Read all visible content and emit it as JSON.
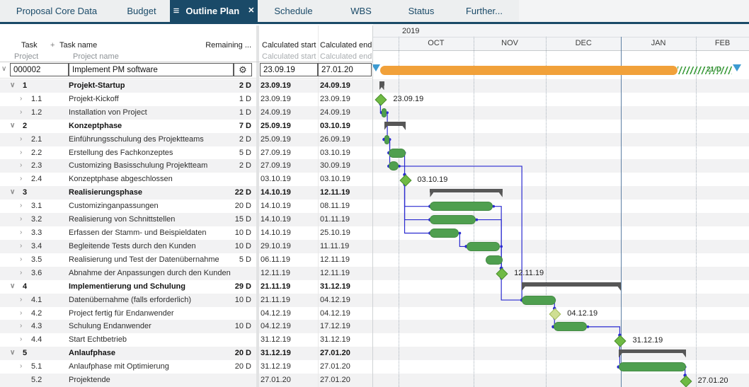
{
  "tabs": [
    {
      "label": "Proposal Core Data",
      "active": false
    },
    {
      "label": "Budget",
      "active": false
    },
    {
      "label": "Outline Plan",
      "active": true
    },
    {
      "label": "Schedule",
      "active": false
    },
    {
      "label": "WBS",
      "active": false
    },
    {
      "label": "Status",
      "active": false
    },
    {
      "label": "Further...",
      "active": false
    }
  ],
  "icons": {
    "menu": "≡",
    "close": "✕",
    "gear": "⚙",
    "chevron_down": "∨",
    "chevron_right": "›",
    "plus": "+"
  },
  "table": {
    "header": {
      "task": "Task",
      "add_column": "+",
      "task_name": "Task name",
      "remaining": "Remaining ...",
      "calc_start": "Calculated start",
      "calc_end": "Calculated end"
    },
    "subheader": {
      "project": "Project",
      "project_name": "Project name",
      "calc_start": "Calculated start",
      "calc_end": "Calculated end"
    },
    "project_row": {
      "id": "000002",
      "name": "Implement PM software",
      "start": "23.09.19",
      "end": "27.01.20"
    }
  },
  "timeline": {
    "year": "2019",
    "months": [
      "OCT",
      "NOV",
      "DEC",
      "JAN",
      "FEB"
    ],
    "buffer_label": "21 D"
  },
  "tasks": [
    {
      "id": "1",
      "name": "Projekt-Startup",
      "remaining": "2 D",
      "start": "23.09.19",
      "end": "24.09.19",
      "level": 1,
      "shape": "summary",
      "chevron": "down"
    },
    {
      "id": "1.1",
      "name": "Projekt-Kickoff",
      "remaining": "1 D",
      "start": "23.09.19",
      "end": "23.09.19",
      "level": 2,
      "shape": "milestone",
      "chevron": "right",
      "label": "23.09.19"
    },
    {
      "id": "1.2",
      "name": "Installation von Project",
      "remaining": "1 D",
      "start": "24.09.19",
      "end": "24.09.19",
      "level": 2,
      "shape": "bar",
      "chevron": "right"
    },
    {
      "id": "2",
      "name": "Konzeptphase",
      "remaining": "7 D",
      "start": "25.09.19",
      "end": "03.10.19",
      "level": 1,
      "shape": "summary",
      "chevron": "down"
    },
    {
      "id": "2.1",
      "name": "Einführungsschulung des Projektteams",
      "remaining": "2 D",
      "start": "25.09.19",
      "end": "26.09.19",
      "level": 2,
      "shape": "bar",
      "chevron": "right"
    },
    {
      "id": "2.2",
      "name": "Erstellung des Fachkonzeptes",
      "remaining": "5 D",
      "start": "27.09.19",
      "end": "03.10.19",
      "level": 2,
      "shape": "bar",
      "chevron": "right"
    },
    {
      "id": "2.3",
      "name": "Customizing Basisschulung Projektteam",
      "remaining": "2 D",
      "start": "27.09.19",
      "end": "30.09.19",
      "level": 2,
      "shape": "bar",
      "chevron": "right"
    },
    {
      "id": "2.4",
      "name": "Konzeptphase abgeschlossen",
      "remaining": "",
      "start": "03.10.19",
      "end": "03.10.19",
      "level": 2,
      "shape": "milestone",
      "chevron": "right",
      "label": "03.10.19"
    },
    {
      "id": "3",
      "name": "Realisierungsphase",
      "remaining": "22 D",
      "start": "14.10.19",
      "end": "12.11.19",
      "level": 1,
      "shape": "summary",
      "chevron": "down"
    },
    {
      "id": "3.1",
      "name": "Customizinganpassungen",
      "remaining": "20 D",
      "start": "14.10.19",
      "end": "08.11.19",
      "level": 2,
      "shape": "bar",
      "chevron": "right"
    },
    {
      "id": "3.2",
      "name": "Realisierung von Schnittstellen",
      "remaining": "15 D",
      "start": "14.10.19",
      "end": "01.11.19",
      "level": 2,
      "shape": "bar",
      "chevron": "right"
    },
    {
      "id": "3.3",
      "name": "Erfassen der Stamm- und Beispieldaten",
      "remaining": "10 D",
      "start": "14.10.19",
      "end": "25.10.19",
      "level": 2,
      "shape": "bar",
      "chevron": "right"
    },
    {
      "id": "3.4",
      "name": "Begleitende Tests durch den Kunden",
      "remaining": "10 D",
      "start": "29.10.19",
      "end": "11.11.19",
      "level": 2,
      "shape": "bar",
      "chevron": "right"
    },
    {
      "id": "3.5",
      "name": "Realisierung und Test der Datenübernahme",
      "remaining": "5 D",
      "start": "06.11.19",
      "end": "12.11.19",
      "level": 2,
      "shape": "bar",
      "chevron": "right"
    },
    {
      "id": "3.6",
      "name": "Abnahme der Anpassungen durch den Kunden",
      "remaining": "",
      "start": "12.11.19",
      "end": "12.11.19",
      "level": 2,
      "shape": "milestone",
      "chevron": "right",
      "label": "12.11.19"
    },
    {
      "id": "4",
      "name": "Implementierung und Schulung",
      "remaining": "29 D",
      "start": "21.11.19",
      "end": "31.12.19",
      "level": 1,
      "shape": "summary",
      "chevron": "down"
    },
    {
      "id": "4.1",
      "name": "Datenübernahme (falls erforderlich)",
      "remaining": "10 D",
      "start": "21.11.19",
      "end": "04.12.19",
      "level": 2,
      "shape": "bar",
      "chevron": "right"
    },
    {
      "id": "4.2",
      "name": "Project fertig für Endanwender",
      "remaining": "",
      "start": "04.12.19",
      "end": "04.12.19",
      "level": 2,
      "shape": "milestone-light",
      "chevron": "right",
      "label": "04.12.19"
    },
    {
      "id": "4.3",
      "name": "Schulung Endanwender",
      "remaining": "10 D",
      "start": "04.12.19",
      "end": "17.12.19",
      "level": 2,
      "shape": "bar",
      "chevron": "right"
    },
    {
      "id": "4.4",
      "name": "Start Echtbetrieb",
      "remaining": "",
      "start": "31.12.19",
      "end": "31.12.19",
      "level": 2,
      "shape": "milestone",
      "chevron": "right",
      "label": "31.12.19"
    },
    {
      "id": "5",
      "name": "Anlaufphase",
      "remaining": "20 D",
      "start": "31.12.19",
      "end": "27.01.20",
      "level": 1,
      "shape": "summary",
      "chevron": "down"
    },
    {
      "id": "5.1",
      "name": "Anlaufphase mit Optimierung",
      "remaining": "20 D",
      "start": "31.12.19",
      "end": "27.01.20",
      "level": 2,
      "shape": "bar",
      "chevron": "right"
    },
    {
      "id": "5.2",
      "name": "Projektende",
      "remaining": "",
      "start": "27.01.20",
      "end": "27.01.20",
      "level": 2,
      "shape": "milestone",
      "chevron": "none",
      "label": "27.01.20"
    }
  ],
  "dependencies": [
    {
      "from": "1.1",
      "to": "1.2"
    },
    {
      "from": "1.2",
      "to": "2.1"
    },
    {
      "from": "2.1",
      "to": "2.2"
    },
    {
      "from": "2.1",
      "to": "2.3"
    },
    {
      "from": "2.2",
      "to": "2.4"
    },
    {
      "from": "2.4",
      "to": "3.1"
    },
    {
      "from": "2.4",
      "to": "3.2"
    },
    {
      "from": "2.4",
      "to": "3.3"
    },
    {
      "from": "3.3",
      "to": "3.4"
    },
    {
      "from": "3.1",
      "to": "3.6"
    },
    {
      "from": "3.2",
      "to": "3.6"
    },
    {
      "from": "3.4",
      "to": "3.6"
    },
    {
      "from": "3.5",
      "to": "3.6"
    },
    {
      "from": "2.3",
      "to": "4.1"
    },
    {
      "from": "3.6",
      "to": "4.1"
    },
    {
      "from": "4.1",
      "to": "4.2"
    },
    {
      "from": "4.2",
      "to": "4.3"
    },
    {
      "from": "4.3",
      "to": "4.4"
    },
    {
      "from": "4.4",
      "to": "5.1"
    },
    {
      "from": "5.1",
      "to": "5.2"
    }
  ],
  "colors": {
    "navy": "#1a4a68",
    "bar_green": "#4f9f4f",
    "milestone_green": "#6fba44",
    "milestone_light": "#cfdf93",
    "summary_gray": "#575757",
    "project_orange": "#f1a13a",
    "connector_blue": "#2b2bd0",
    "marker_blue": "#3d9bd1",
    "buffer_green": "#3f9e3f"
  }
}
